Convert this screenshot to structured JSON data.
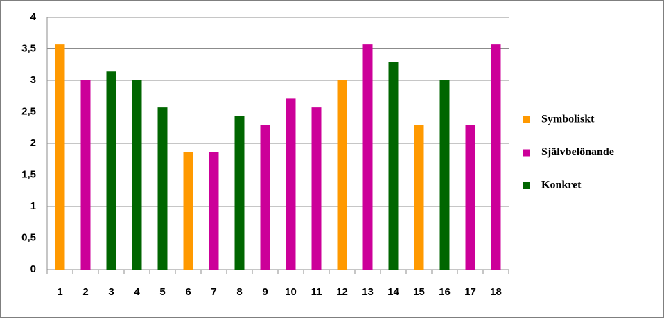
{
  "chart_data": {
    "type": "bar",
    "categories": [
      "1",
      "2",
      "3",
      "4",
      "5",
      "6",
      "7",
      "8",
      "9",
      "10",
      "11",
      "12",
      "13",
      "14",
      "15",
      "16",
      "17",
      "18"
    ],
    "series": [
      {
        "name": "Symboliskt",
        "color": "#ff9900",
        "values": [
          3.57,
          null,
          null,
          null,
          null,
          1.86,
          null,
          null,
          null,
          null,
          null,
          3,
          null,
          null,
          2.29,
          null,
          null,
          null
        ]
      },
      {
        "name": "Självbelönande",
        "color": "#cc0099",
        "values": [
          null,
          3,
          null,
          null,
          null,
          null,
          1.86,
          null,
          2.29,
          2.71,
          2.57,
          null,
          3.57,
          null,
          null,
          null,
          2.29,
          3.57
        ]
      },
      {
        "name": "Konkret",
        "color": "#006600",
        "values": [
          null,
          null,
          3.14,
          3,
          2.57,
          null,
          null,
          2.43,
          null,
          null,
          null,
          null,
          null,
          3.29,
          null,
          3,
          null,
          null
        ]
      }
    ],
    "ylim": [
      0,
      4
    ],
    "yticks": [
      0,
      {
        "value": 0.5,
        "label": "0,5"
      },
      1,
      {
        "value": 1.5,
        "label": "1,5"
      },
      2,
      {
        "value": 2.5,
        "label": "2,5"
      },
      3,
      {
        "value": 3.5,
        "label": "3,5"
      },
      4
    ],
    "grid": true,
    "legend": "right"
  }
}
